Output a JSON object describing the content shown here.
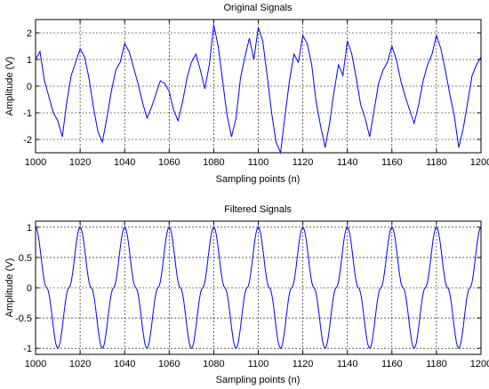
{
  "chart_data": [
    {
      "type": "line",
      "title": "Original Signals",
      "xlabel": "Sampling points (n)",
      "ylabel": "Amplitude (V)",
      "xlim": [
        1000,
        1200
      ],
      "ylim": [
        -2.5,
        2.5
      ],
      "xticks": [
        1000,
        1020,
        1040,
        1060,
        1080,
        1100,
        1120,
        1140,
        1160,
        1180,
        1200
      ],
      "yticks": [
        -2,
        -1,
        0,
        1,
        2
      ],
      "ytick_labels": [
        "-2",
        "-1",
        "0",
        "1",
        "2"
      ],
      "grid": true,
      "line_color": "#0000ff",
      "series": [
        {
          "x": [
            1000,
            1002,
            1004,
            1006,
            1008,
            1010,
            1012,
            1014,
            1016,
            1018,
            1020,
            1022,
            1024,
            1026,
            1028,
            1030,
            1032,
            1034,
            1036,
            1038,
            1040,
            1042,
            1044,
            1046,
            1048,
            1050,
            1052,
            1054,
            1056,
            1058,
            1060,
            1062,
            1064,
            1066,
            1068,
            1070,
            1072,
            1074,
            1076,
            1078,
            1080,
            1082,
            1084,
            1086,
            1088,
            1090,
            1092,
            1094,
            1096,
            1098,
            1100,
            1102,
            1104,
            1106,
            1108,
            1110,
            1112,
            1114,
            1116,
            1118,
            1120,
            1122,
            1124,
            1126,
            1128,
            1130,
            1132,
            1134,
            1136,
            1138,
            1140,
            1142,
            1144,
            1146,
            1148,
            1150,
            1152,
            1154,
            1156,
            1158,
            1160,
            1162,
            1164,
            1166,
            1168,
            1170,
            1172,
            1174,
            1176,
            1178,
            1180,
            1182,
            1184,
            1186,
            1188,
            1190,
            1192,
            1194,
            1196,
            1198,
            1200
          ],
          "y": [
            1.0,
            1.3,
            0.2,
            -0.4,
            -1.0,
            -1.3,
            -1.9,
            -0.6,
            0.4,
            0.9,
            1.4,
            1.1,
            0.3,
            -0.8,
            -1.7,
            -2.1,
            -1.2,
            -0.2,
            0.6,
            0.9,
            1.6,
            1.3,
            0.7,
            0.1,
            -0.6,
            -1.2,
            -0.8,
            -0.3,
            0.2,
            0.1,
            -0.2,
            -0.9,
            -1.3,
            -0.6,
            0.3,
            0.9,
            1.2,
            0.6,
            -0.1,
            0.8,
            2.3,
            1.5,
            0.2,
            -1.1,
            -1.9,
            -1.2,
            0.3,
            1.1,
            1.8,
            1.0,
            2.2,
            1.7,
            0.4,
            -1.0,
            -2.1,
            -2.5,
            -1.1,
            0.2,
            1.2,
            0.9,
            1.9,
            1.6,
            0.8,
            -0.6,
            -1.5,
            -2.3,
            -1.4,
            -0.2,
            0.8,
            0.4,
            1.7,
            1.2,
            0.3,
            -0.7,
            -1.2,
            -1.9,
            -0.9,
            0.1,
            0.6,
            0.9,
            1.5,
            1.0,
            0.2,
            -0.4,
            -0.9,
            -1.4,
            -0.7,
            0.2,
            0.8,
            1.2,
            1.9,
            1.4,
            0.6,
            -0.3,
            -1.1,
            -2.3,
            -1.6,
            -0.6,
            0.4,
            0.8,
            1.1
          ]
        }
      ]
    },
    {
      "type": "line",
      "title": "Filtered Signals",
      "xlabel": "Sampling points (n)",
      "ylabel": "Amplitude (V)",
      "xlim": [
        1000,
        1200
      ],
      "ylim": [
        -1.1,
        1.1
      ],
      "xticks": [
        1000,
        1020,
        1040,
        1060,
        1080,
        1100,
        1120,
        1140,
        1160,
        1180,
        1200
      ],
      "yticks": [
        -1,
        -0.5,
        0,
        0.5,
        1
      ],
      "ytick_labels": [
        "-1",
        "-0.5",
        "0",
        "0.5",
        "1"
      ],
      "grid": true,
      "line_color": "#0000ff",
      "series": [
        {
          "x": [
            1000,
            1005,
            1010,
            1015,
            1020,
            1025,
            1030,
            1035,
            1040,
            1045,
            1050,
            1055,
            1060,
            1065,
            1070,
            1075,
            1080,
            1085,
            1090,
            1095,
            1100,
            1105,
            1110,
            1115,
            1120,
            1125,
            1130,
            1135,
            1140,
            1145,
            1150,
            1155,
            1160,
            1165,
            1170,
            1175,
            1180,
            1185,
            1190,
            1195,
            1200
          ],
          "y": [
            1,
            0,
            -1,
            0,
            1,
            0,
            -1,
            0,
            1,
            0,
            -1,
            0,
            1,
            0,
            -1,
            0,
            1,
            0,
            -1,
            0,
            1,
            0,
            -1,
            0,
            1,
            0,
            -1,
            0,
            1,
            0,
            -1,
            0,
            1,
            0,
            -1,
            0,
            1,
            0,
            -1,
            0,
            1
          ]
        }
      ]
    }
  ]
}
